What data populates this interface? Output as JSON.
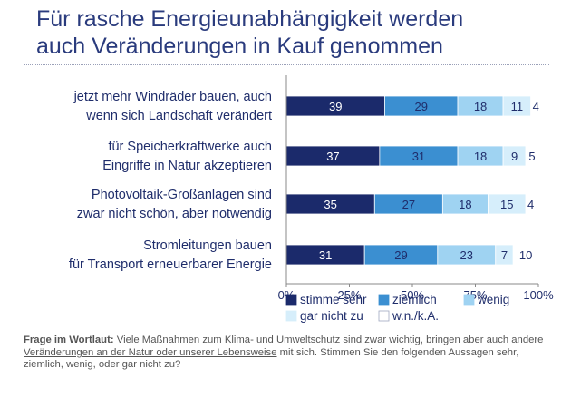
{
  "title_line1": "Für rasche Energieunabhängigkeit werden",
  "title_line2": "auch Veränderungen in Kauf genommen",
  "question": {
    "label": "Frage im Wortlaut:",
    "text_a": " Viele Maßnahmen zum Klima- und Umweltschutz sind zwar wichtig, bringen aber auch andere ",
    "text_underlined": "Veränderungen an der Natur oder unserer Lebensweise",
    "text_b": " mit sich. Stimmen Sie den folgenden Aussagen sehr, ziemlich, wenig, oder gar nicht zu?"
  },
  "chart_data": {
    "type": "bar",
    "orientation": "horizontal",
    "stacked": true,
    "categories": [
      [
        "jetzt mehr Windräder bauen, auch",
        "wenn sich Landschaft verändert"
      ],
      [
        "für Speicherkraftwerke auch",
        "Eingriffe in Natur akzeptieren"
      ],
      [
        "Photovoltaik-Großanlagen sind",
        "zwar nicht schön, aber notwendig"
      ],
      [
        "Stromleitungen bauen",
        "für Transport erneuerbarer Energie"
      ]
    ],
    "series": [
      {
        "name": "stimme sehr",
        "color": "#1b2a6b",
        "label_color": "#ffffff",
        "values": [
          39,
          37,
          35,
          31
        ]
      },
      {
        "name": "ziemlich",
        "color": "#3b8fd1",
        "label_color": "#1f2d6b",
        "values": [
          29,
          31,
          27,
          29
        ]
      },
      {
        "name": "wenig",
        "color": "#9fd3f2",
        "label_color": "#1f2d6b",
        "values": [
          18,
          18,
          18,
          23
        ]
      },
      {
        "name": "gar nicht zu",
        "color": "#d6eefb",
        "label_color": "#1f2d6b",
        "values": [
          11,
          9,
          15,
          7
        ]
      },
      {
        "name": "w.n./k.A.",
        "color": "#ffffff",
        "label_color": "#1f2d6b",
        "values": [
          4,
          5,
          4,
          10
        ]
      }
    ],
    "x_ticks": [
      "0%",
      "25%",
      "50%",
      "75%",
      "100%"
    ],
    "xlim": [
      0,
      100
    ],
    "legend_position": "bottom",
    "grid": false
  }
}
